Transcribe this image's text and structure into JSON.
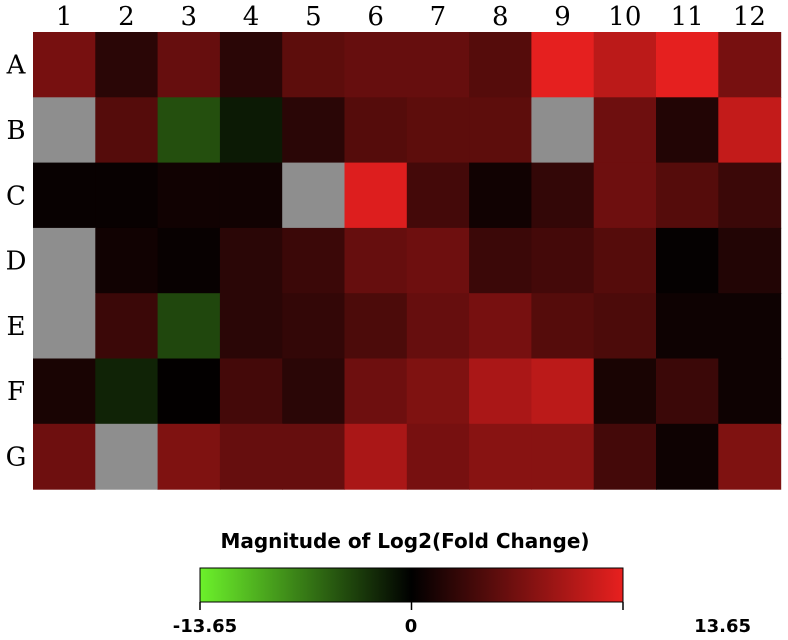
{
  "chart_data": {
    "type": "heatmap",
    "columns": [
      "1",
      "2",
      "3",
      "4",
      "5",
      "6",
      "7",
      "8",
      "9",
      "10",
      "11",
      "12"
    ],
    "rows": [
      "A",
      "B",
      "C",
      "D",
      "E",
      "F",
      "G"
    ],
    "values": [
      [
        7.0,
        2.5,
        6.0,
        2.5,
        5.5,
        6.0,
        6.0,
        5.0,
        13.5,
        11.0,
        13.5,
        7.0
      ],
      [
        null,
        5.0,
        -4.5,
        -1.5,
        2.5,
        5.0,
        5.5,
        5.5,
        null,
        6.5,
        2.0,
        11.5
      ],
      [
        0.5,
        0.5,
        1.0,
        1.0,
        null,
        13.0,
        4.0,
        1.0,
        3.0,
        6.5,
        5.0,
        3.5
      ],
      [
        null,
        1.0,
        0.5,
        2.5,
        3.5,
        6.0,
        6.5,
        3.5,
        4.0,
        5.0,
        0.3,
        2.0
      ],
      [
        null,
        3.5,
        -4.0,
        2.5,
        3.0,
        4.5,
        6.0,
        7.0,
        5.0,
        4.5,
        0.8,
        0.8
      ],
      [
        1.5,
        -2.0,
        0.2,
        4.0,
        2.5,
        6.5,
        7.5,
        10.0,
        11.0,
        1.5,
        3.5,
        0.8
      ],
      [
        6.5,
        null,
        7.5,
        6.0,
        6.0,
        10.0,
        7.0,
        8.0,
        8.0,
        4.0,
        0.8,
        7.5
      ]
    ],
    "colorscale": {
      "min": -13.65,
      "mid": 0,
      "max": 13.65,
      "min_color": "#6cf12b",
      "mid_color": "#000000",
      "max_color": "#e8201f",
      "missing_color": "#8e8e8e"
    },
    "legend": {
      "title": "Magnitude of Log2(Fold Change)",
      "ticks": [
        "-13.65",
        "0",
        "13.65"
      ]
    }
  }
}
